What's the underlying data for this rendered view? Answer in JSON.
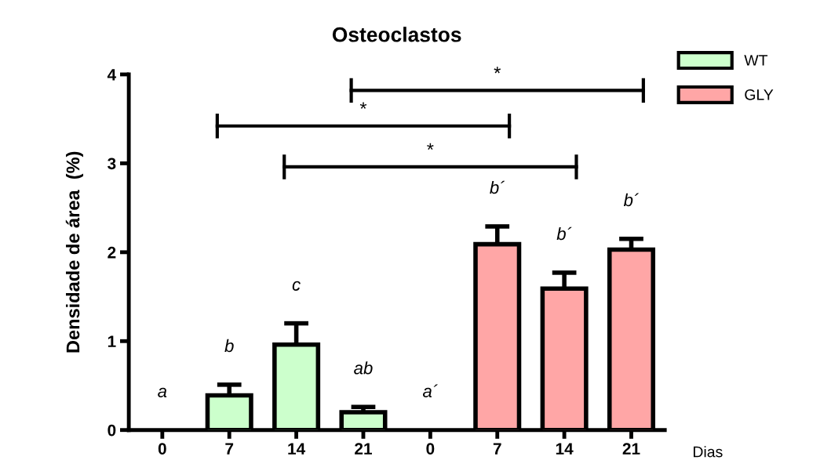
{
  "chart_data": {
    "type": "bar",
    "title": "Osteoclastos",
    "ylabel": "Densidade de área  (%)",
    "xlabel": "Dias",
    "categories": [
      "0",
      "7",
      "14",
      "21",
      "0",
      "7",
      "14",
      "21"
    ],
    "series": [
      {
        "name": "WT",
        "color": "#ccffcc",
        "values": [
          0,
          0.39,
          0.96,
          0.2,
          null,
          null,
          null,
          null
        ],
        "errors": [
          null,
          [
            0.39,
            0.51
          ],
          [
            0.96,
            1.2
          ],
          [
            0.2,
            0.26
          ],
          null,
          null,
          null,
          null
        ]
      },
      {
        "name": "GLY",
        "color": "#ffa6a6",
        "values": [
          null,
          null,
          null,
          null,
          0,
          2.09,
          1.59,
          2.03
        ],
        "errors": [
          null,
          null,
          null,
          null,
          null,
          [
            2.09,
            2.29
          ],
          [
            1.59,
            1.77
          ],
          [
            2.03,
            2.15
          ]
        ]
      }
    ],
    "ylim": [
      0,
      4
    ],
    "yticks": [
      0,
      1,
      2,
      3,
      4
    ],
    "grid": false,
    "legend": "top right",
    "annotations": [
      "a",
      "b",
      "c",
      "ab",
      "a´",
      "b´",
      "b´",
      "b´",
      "*",
      "*",
      "*"
    ]
  }
}
